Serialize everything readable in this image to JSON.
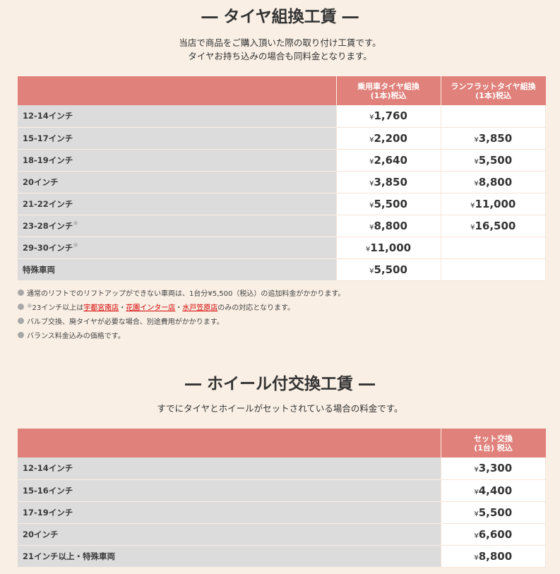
{
  "tire": {
    "title": "― タイヤ組換工賃 ―",
    "subtitle1": "当店で商品をご購入頂いた際の取り付け工賃です。",
    "subtitle2": "タイヤお持ち込みの場合も同料金となります。",
    "headers": [
      "",
      "乗用車タイヤ組換",
      "(1本)税込",
      "ランフラットタイヤ組換",
      "(1本)税込"
    ],
    "rows": [
      {
        "size": "12-14インチ",
        "mark": "",
        "car": "1,760",
        "runflat": ""
      },
      {
        "size": "15-17インチ",
        "mark": "",
        "car": "2,200",
        "runflat": "3,850"
      },
      {
        "size": "18-19インチ",
        "mark": "",
        "car": "2,640",
        "runflat": "5,500"
      },
      {
        "size": "20インチ",
        "mark": "",
        "car": "3,850",
        "runflat": "8,800"
      },
      {
        "size": "21-22インチ",
        "mark": "",
        "car": "5,500",
        "runflat": "11,000"
      },
      {
        "size": "23-28インチ",
        "mark": "※",
        "car": "8,800",
        "runflat": "16,500"
      },
      {
        "size": "29-30インチ",
        "mark": "※",
        "car": "11,000",
        "runflat": ""
      },
      {
        "size": "特殊車両",
        "mark": "",
        "car": "5,500",
        "runflat": ""
      }
    ],
    "yen": "¥",
    "notes": {
      "n1": "通常のリフトでのリフトアップができない車両は、1台分¥5,500（税込）の追加料金がかかります。",
      "n2_mark": "※",
      "n2_pre": "23インチ以上は",
      "store1": "宇都宮南店",
      "sep": "・",
      "store2": "花園インター店",
      "store3": "水戸笠原店",
      "n2_post": "のみの対応となります。",
      "n3": "バルブ交換、廃タイヤが必要な場合、別途費用がかかります。",
      "n4": "バランス料金込みの価格です。"
    }
  },
  "wheel": {
    "title": "― ホイール付交換工賃 ―",
    "subtitle": "すでにタイヤとホイールがセットされている場合の料金です。",
    "headers": [
      "",
      "セット交換",
      "(1台) 税込"
    ],
    "rows": [
      {
        "size": "12-14インチ",
        "price": "3,300"
      },
      {
        "size": "15-16インチ",
        "price": "4,400"
      },
      {
        "size": "17-19インチ",
        "price": "5,500"
      },
      {
        "size": "20インチ",
        "price": "6,600"
      },
      {
        "size": "21インチ以上・特殊車両",
        "price": "8,800"
      }
    ]
  },
  "colors": {
    "header": "#e0817b",
    "background": "#f9efe4",
    "label_cell": "#dcdcdc",
    "link": "#d40000"
  }
}
